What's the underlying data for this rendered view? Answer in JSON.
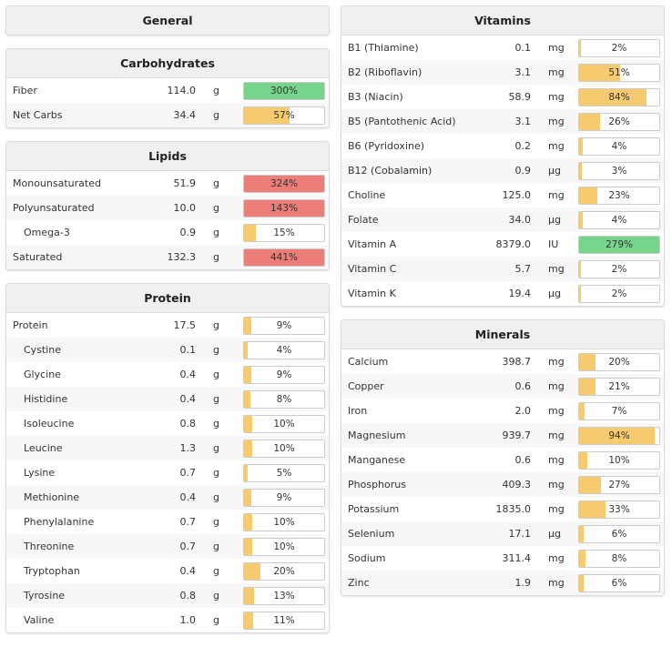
{
  "general": {
    "title": "General"
  },
  "carbohydrates": {
    "title": "Carbohydrates",
    "rows": [
      {
        "name": "Fiber",
        "amount": "114.0",
        "unit": "g",
        "pct": "300%",
        "fill": 100,
        "status": "good",
        "indent": false
      },
      {
        "name": "Net Carbs",
        "amount": "34.4",
        "unit": "g",
        "pct": "57%",
        "fill": 57,
        "status": "ok",
        "indent": false
      }
    ]
  },
  "lipids": {
    "title": "Lipids",
    "rows": [
      {
        "name": "Monounsaturated",
        "amount": "51.9",
        "unit": "g",
        "pct": "324%",
        "fill": 100,
        "status": "over",
        "indent": false
      },
      {
        "name": "Polyunsaturated",
        "amount": "10.0",
        "unit": "g",
        "pct": "143%",
        "fill": 100,
        "status": "over",
        "indent": false
      },
      {
        "name": "Omega-3",
        "amount": "0.9",
        "unit": "g",
        "pct": "15%",
        "fill": 15,
        "status": "ok",
        "indent": true
      },
      {
        "name": "Saturated",
        "amount": "132.3",
        "unit": "g",
        "pct": "441%",
        "fill": 100,
        "status": "over",
        "indent": false
      }
    ]
  },
  "protein": {
    "title": "Protein",
    "rows": [
      {
        "name": "Protein",
        "amount": "17.5",
        "unit": "g",
        "pct": "9%",
        "fill": 9,
        "status": "ok",
        "indent": false
      },
      {
        "name": "Cystine",
        "amount": "0.1",
        "unit": "g",
        "pct": "4%",
        "fill": 4,
        "status": "ok",
        "indent": true
      },
      {
        "name": "Glycine",
        "amount": "0.4",
        "unit": "g",
        "pct": "9%",
        "fill": 9,
        "status": "ok",
        "indent": true
      },
      {
        "name": "Histidine",
        "amount": "0.4",
        "unit": "g",
        "pct": "8%",
        "fill": 8,
        "status": "ok",
        "indent": true
      },
      {
        "name": "Isoleucine",
        "amount": "0.8",
        "unit": "g",
        "pct": "10%",
        "fill": 10,
        "status": "ok",
        "indent": true
      },
      {
        "name": "Leucine",
        "amount": "1.3",
        "unit": "g",
        "pct": "10%",
        "fill": 10,
        "status": "ok",
        "indent": true
      },
      {
        "name": "Lysine",
        "amount": "0.7",
        "unit": "g",
        "pct": "5%",
        "fill": 5,
        "status": "ok",
        "indent": true
      },
      {
        "name": "Methionine",
        "amount": "0.4",
        "unit": "g",
        "pct": "9%",
        "fill": 9,
        "status": "ok",
        "indent": true
      },
      {
        "name": "Phenylalanine",
        "amount": "0.7",
        "unit": "g",
        "pct": "10%",
        "fill": 10,
        "status": "ok",
        "indent": true
      },
      {
        "name": "Threonine",
        "amount": "0.7",
        "unit": "g",
        "pct": "10%",
        "fill": 10,
        "status": "ok",
        "indent": true
      },
      {
        "name": "Tryptophan",
        "amount": "0.4",
        "unit": "g",
        "pct": "20%",
        "fill": 20,
        "status": "ok",
        "indent": true
      },
      {
        "name": "Tyrosine",
        "amount": "0.8",
        "unit": "g",
        "pct": "13%",
        "fill": 13,
        "status": "ok",
        "indent": true
      },
      {
        "name": "Valine",
        "amount": "1.0",
        "unit": "g",
        "pct": "11%",
        "fill": 11,
        "status": "ok",
        "indent": true
      }
    ]
  },
  "vitamins": {
    "title": "Vitamins",
    "rows": [
      {
        "name": "B1 (Thiamine)",
        "amount": "0.1",
        "unit": "mg",
        "pct": "2%",
        "fill": 2,
        "status": "ok",
        "indent": false
      },
      {
        "name": "B2 (Riboflavin)",
        "amount": "3.1",
        "unit": "mg",
        "pct": "51%",
        "fill": 51,
        "status": "ok",
        "indent": false
      },
      {
        "name": "B3 (Niacin)",
        "amount": "58.9",
        "unit": "mg",
        "pct": "84%",
        "fill": 84,
        "status": "ok",
        "indent": false
      },
      {
        "name": "B5 (Pantothenic Acid)",
        "amount": "3.1",
        "unit": "mg",
        "pct": "26%",
        "fill": 26,
        "status": "ok",
        "indent": false
      },
      {
        "name": "B6 (Pyridoxine)",
        "amount": "0.2",
        "unit": "mg",
        "pct": "4%",
        "fill": 4,
        "status": "ok",
        "indent": false
      },
      {
        "name": "B12 (Cobalamin)",
        "amount": "0.9",
        "unit": "µg",
        "pct": "3%",
        "fill": 3,
        "status": "ok",
        "indent": false
      },
      {
        "name": "Choline",
        "amount": "125.0",
        "unit": "mg",
        "pct": "23%",
        "fill": 23,
        "status": "ok",
        "indent": false
      },
      {
        "name": "Folate",
        "amount": "34.0",
        "unit": "µg",
        "pct": "4%",
        "fill": 4,
        "status": "ok",
        "indent": false
      },
      {
        "name": "Vitamin A",
        "amount": "8379.0",
        "unit": "IU",
        "pct": "279%",
        "fill": 100,
        "status": "good",
        "indent": false
      },
      {
        "name": "Vitamin C",
        "amount": "5.7",
        "unit": "mg",
        "pct": "2%",
        "fill": 2,
        "status": "ok",
        "indent": false
      },
      {
        "name": "Vitamin K",
        "amount": "19.4",
        "unit": "µg",
        "pct": "2%",
        "fill": 2,
        "status": "ok",
        "indent": false
      }
    ]
  },
  "minerals": {
    "title": "Minerals",
    "rows": [
      {
        "name": "Calcium",
        "amount": "398.7",
        "unit": "mg",
        "pct": "20%",
        "fill": 20,
        "status": "ok",
        "indent": false
      },
      {
        "name": "Copper",
        "amount": "0.6",
        "unit": "mg",
        "pct": "21%",
        "fill": 21,
        "status": "ok",
        "indent": false
      },
      {
        "name": "Iron",
        "amount": "2.0",
        "unit": "mg",
        "pct": "7%",
        "fill": 7,
        "status": "ok",
        "indent": false
      },
      {
        "name": "Magnesium",
        "amount": "939.7",
        "unit": "mg",
        "pct": "94%",
        "fill": 94,
        "status": "ok",
        "indent": false
      },
      {
        "name": "Manganese",
        "amount": "0.6",
        "unit": "mg",
        "pct": "10%",
        "fill": 10,
        "status": "ok",
        "indent": false
      },
      {
        "name": "Phosphorus",
        "amount": "409.3",
        "unit": "mg",
        "pct": "27%",
        "fill": 27,
        "status": "ok",
        "indent": false
      },
      {
        "name": "Potassium",
        "amount": "1835.0",
        "unit": "mg",
        "pct": "33%",
        "fill": 33,
        "status": "ok",
        "indent": false
      },
      {
        "name": "Selenium",
        "amount": "17.1",
        "unit": "µg",
        "pct": "6%",
        "fill": 6,
        "status": "ok",
        "indent": false
      },
      {
        "name": "Sodium",
        "amount": "311.4",
        "unit": "mg",
        "pct": "8%",
        "fill": 8,
        "status": "ok",
        "indent": false
      },
      {
        "name": "Zinc",
        "amount": "1.9",
        "unit": "mg",
        "pct": "6%",
        "fill": 6,
        "status": "ok",
        "indent": false
      }
    ]
  },
  "colors": {
    "ok": "#f6ca6e",
    "good": "#77d48d",
    "over": "#ec7d78",
    "header_bg": "#f0f0f0"
  }
}
